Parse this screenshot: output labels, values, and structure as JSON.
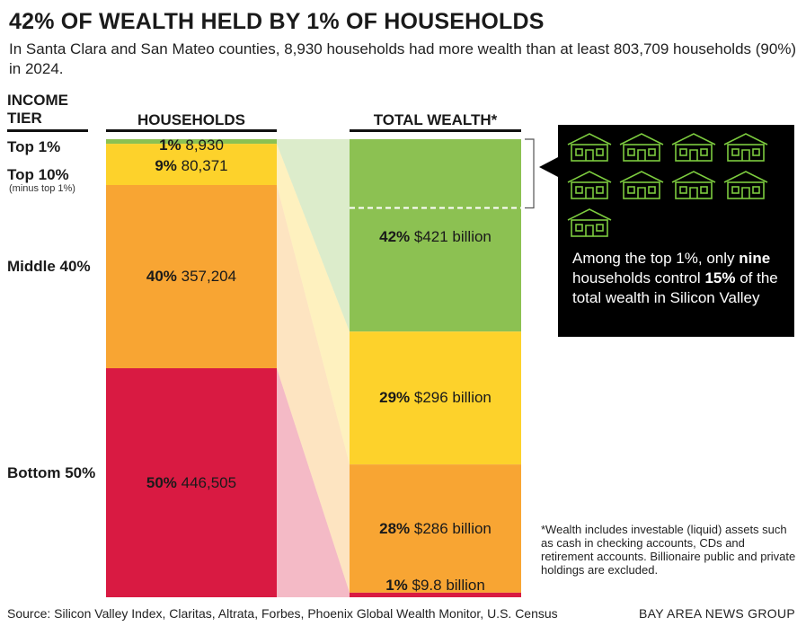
{
  "title": "42% OF WEALTH HELD BY 1% OF HOUSEHOLDS",
  "subtitle": "In Santa Clara and San Mateo counties, 8,930 households had more wealth than at least 803,709 households (90%) in 2024.",
  "columns": {
    "tier_heading": [
      "INCOME",
      "TIER"
    ],
    "households_heading": "HOUSEHOLDS",
    "wealth_heading": "TOTAL WEALTH*"
  },
  "colors": {
    "top1": "#8cc152",
    "top10": "#fdd22b",
    "middle": "#f8a533",
    "bottom": "#d91a42",
    "callout_bg": "#000000",
    "house_icon": "#7ccb3e"
  },
  "chart_data": {
    "type": "bar",
    "title": "42% OF WEALTH HELD BY 1% OF HOUSEHOLDS",
    "categories": [
      "Top 1%",
      "Top 10% (minus top 1%)",
      "Middle 40%",
      "Bottom 50%"
    ],
    "series": [
      {
        "name": "HOUSEHOLDS",
        "percent": [
          1,
          9,
          40,
          50
        ],
        "values": [
          8930,
          80371,
          357204,
          446505
        ],
        "labels": [
          "8,930",
          "80,371",
          "357,204",
          "446,505"
        ]
      },
      {
        "name": "TOTAL WEALTH*",
        "percent": [
          42,
          29,
          28,
          1
        ],
        "values_billion": [
          421,
          296,
          286,
          9.8
        ],
        "labels": [
          "$421 billion",
          "$296 billion",
          "$286 billion",
          "$9.8 billion"
        ]
      }
    ]
  },
  "tiers": [
    {
      "label": "Top 1%",
      "note": ""
    },
    {
      "label": "Top 10%",
      "note": "(minus top 1%)"
    },
    {
      "label": "Middle 40%",
      "note": ""
    },
    {
      "label": "Bottom 50%",
      "note": ""
    }
  ],
  "callout": {
    "house_icon": "house-icon",
    "house_count": 9,
    "text_before": "Among the top 1%, only ",
    "bold_1": "nine",
    "text_mid": " households control ",
    "bold_2": "15%",
    "text_after": " of the total wealth in Silicon Valley",
    "share_of_top1_wealth_percent": 15
  },
  "footnote": "*Wealth includes investable (liquid) assets such as cash in checking accounts, CDs and retirement accounts. Billionaire public and private holdings are excluded.",
  "source": "Source: Silicon Valley Index, Claritas, Altrata, Forbes, Phoenix Global Wealth Monitor, U.S. Census",
  "credit": "BAY AREA NEWS GROUP"
}
